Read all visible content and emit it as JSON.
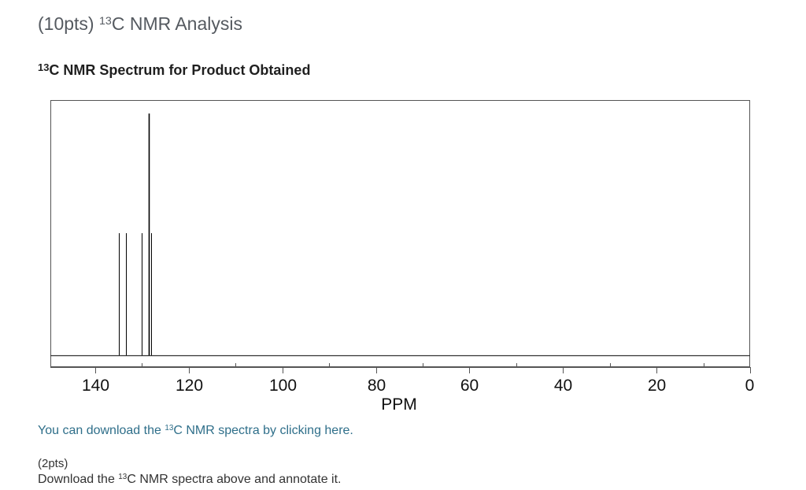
{
  "header": {
    "points": "(10pts)",
    "sup": "13",
    "title_rest": "C NMR Analysis"
  },
  "section": {
    "sup": "13",
    "title_rest": "C NMR Spectrum for Product Obtained"
  },
  "colors": {
    "link": "#2f6f8a",
    "heading": "#555a60",
    "spectrum_line": "#000000"
  },
  "chart_data": {
    "type": "line",
    "title": "",
    "xlabel": "PPM",
    "ylabel": "",
    "xlim": [
      150,
      0
    ],
    "reversed_x": true,
    "tick_labels": [
      "140",
      "120",
      "100",
      "80",
      "60",
      "40",
      "20",
      "0"
    ],
    "tick_values": [
      140,
      120,
      100,
      80,
      60,
      40,
      20,
      0
    ],
    "minor_ticks": [
      130,
      110,
      90,
      70,
      50,
      30,
      10
    ],
    "grid": false,
    "peaks": [
      {
        "ppm": 135.0,
        "intensity": 0.48
      },
      {
        "ppm": 133.5,
        "intensity": 0.48
      },
      {
        "ppm": 130.0,
        "intensity": 0.48
      },
      {
        "ppm": 128.6,
        "intensity": 0.95
      },
      {
        "ppm": 128.0,
        "intensity": 0.48
      }
    ]
  },
  "download": {
    "prefix": "You can download the ",
    "sup": "13",
    "suffix": "C NMR spectra by clicking here."
  },
  "task": {
    "points": "(2pts)",
    "prefix": "Download the ",
    "sup": "13",
    "suffix": "C NMR spectra above and annotate it."
  }
}
